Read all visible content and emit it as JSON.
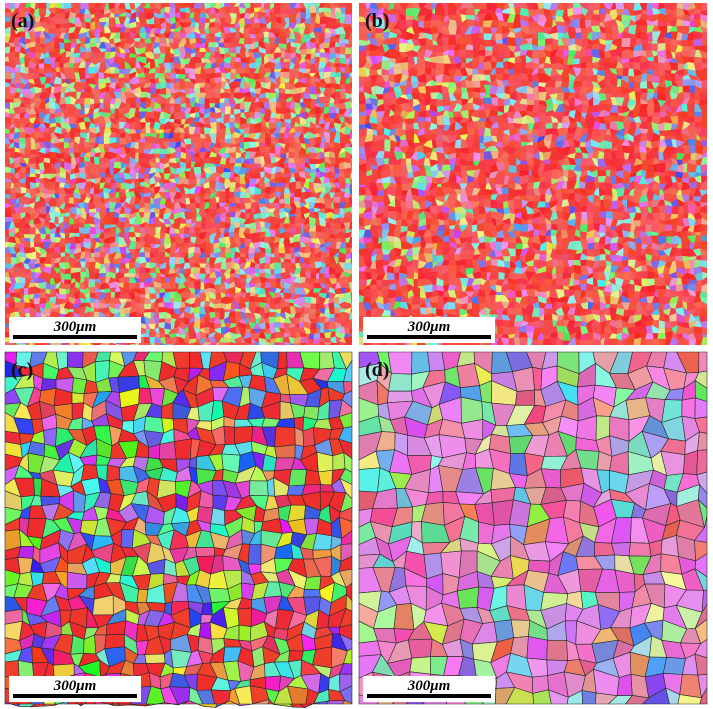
{
  "panels": [
    {
      "label": "(a)",
      "scale_bar": "300μm"
    },
    {
      "label": "(b)",
      "scale_bar": "300μm"
    },
    {
      "label": "(c)",
      "scale_bar": "300μm"
    },
    {
      "label": "(d)",
      "scale_bar": "300μm"
    }
  ]
}
